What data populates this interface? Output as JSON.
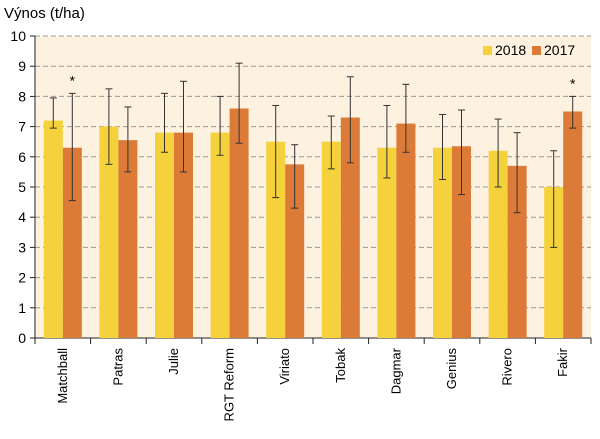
{
  "chart_data": {
    "type": "bar",
    "title": "",
    "ylabel": "Výnos (t/ha)",
    "xlabel": "",
    "ylim": [
      0,
      10
    ],
    "yticks": [
      "0",
      "1",
      "2",
      "3",
      "4",
      "5",
      "6",
      "7",
      "8",
      "9",
      "10"
    ],
    "grid": "horizontal dashed",
    "legend_position": "top-right",
    "categories": [
      "Matchball",
      "Patras",
      "Julie",
      "RGT Reform",
      "Viriato",
      "Tobak",
      "Dagmar",
      "Genius",
      "Rivero",
      "Fakir"
    ],
    "series": [
      {
        "name": "2018",
        "color": "#F5D13B",
        "values": [
          7.2,
          7.0,
          6.8,
          6.8,
          6.5,
          6.5,
          6.3,
          6.3,
          6.2,
          5.0
        ],
        "err_low": [
          6.95,
          5.75,
          6.15,
          6.05,
          4.65,
          5.6,
          5.3,
          5.25,
          5.0,
          3.0
        ],
        "err_high": [
          7.95,
          8.25,
          8.1,
          8.0,
          7.7,
          7.35,
          7.7,
          7.4,
          7.25,
          6.2
        ]
      },
      {
        "name": "2017",
        "color": "#DB7B37",
        "values": [
          6.3,
          6.55,
          6.8,
          7.6,
          5.75,
          7.3,
          7.1,
          6.35,
          5.7,
          7.5
        ],
        "err_low": [
          4.55,
          5.5,
          5.5,
          6.45,
          4.3,
          5.8,
          6.15,
          4.75,
          4.15,
          6.95
        ],
        "err_high": [
          8.1,
          7.65,
          8.5,
          9.1,
          6.4,
          8.65,
          8.4,
          7.55,
          6.8,
          8.0
        ]
      }
    ],
    "annotations": [
      {
        "category": "Matchball",
        "series": "2017",
        "text": "*"
      },
      {
        "category": "Fakir",
        "series": "2017",
        "text": "*"
      }
    ],
    "colors": {
      "plot_background": "#FDF1DF",
      "grid": "#9A9A9A",
      "axis": "#222222",
      "error_bar": "#333333"
    }
  }
}
